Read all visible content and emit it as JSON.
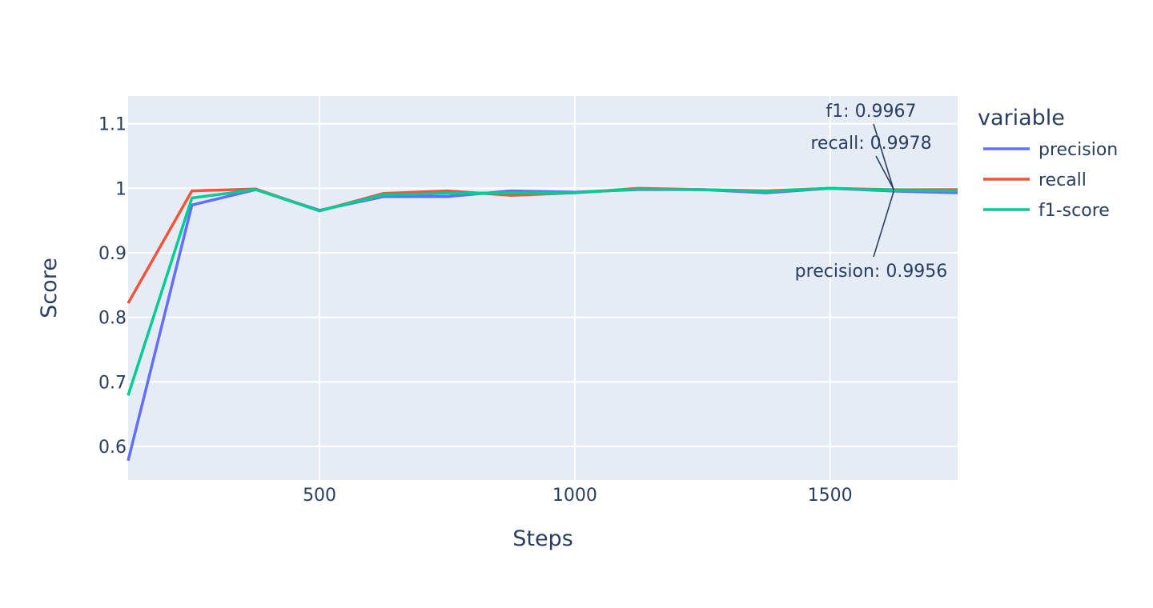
{
  "chart_data": {
    "type": "line",
    "xlabel": "Steps",
    "ylabel": "Score",
    "xlim": [
      125,
      1750
    ],
    "ylim": [
      0.548,
      1.143
    ],
    "xticks": [
      500,
      1000,
      1500
    ],
    "xtick_labels": [
      "500",
      "1000",
      "1500"
    ],
    "yticks": [
      0.6,
      0.7,
      0.8,
      0.9,
      1.0,
      1.1
    ],
    "ytick_labels": [
      "0.6",
      "0.7",
      "0.8",
      "0.9",
      "1",
      "1.1"
    ],
    "grid": true,
    "plot_background": "#E5ECF6",
    "legend": {
      "title": "variable",
      "placement": "right"
    },
    "x": [
      125,
      250,
      375,
      500,
      625,
      750,
      875,
      1000,
      1125,
      1250,
      1375,
      1500,
      1625,
      1750
    ],
    "series": [
      {
        "name": "precision",
        "color": "#636EFA",
        "values": [
          0.578,
          0.974,
          0.998,
          0.966,
          0.987,
          0.987,
          0.996,
          0.994,
          0.998,
          0.998,
          0.993,
          1.0,
          0.9956,
          0.993
        ]
      },
      {
        "name": "recall",
        "color": "#EF553B",
        "values": [
          0.822,
          0.996,
          0.999,
          0.965,
          0.992,
          0.996,
          0.989,
          0.993,
          1.0,
          0.998,
          0.996,
          1.0,
          0.9978,
          0.998
        ]
      },
      {
        "name": "f1-score",
        "color": "#00CC96",
        "values": [
          0.679,
          0.985,
          0.998,
          0.965,
          0.99,
          0.992,
          0.993,
          0.993,
          0.999,
          0.998,
          0.995,
          1.0,
          0.9967,
          0.996
        ]
      }
    ],
    "annotations": [
      {
        "text": "f1: 0.9967",
        "x": 1625,
        "y": 0.9967
      },
      {
        "text": "recall: 0.9978",
        "x": 1625,
        "y": 0.9978
      },
      {
        "text": "precision: 0.9956",
        "x": 1625,
        "y": 0.9956
      }
    ]
  }
}
